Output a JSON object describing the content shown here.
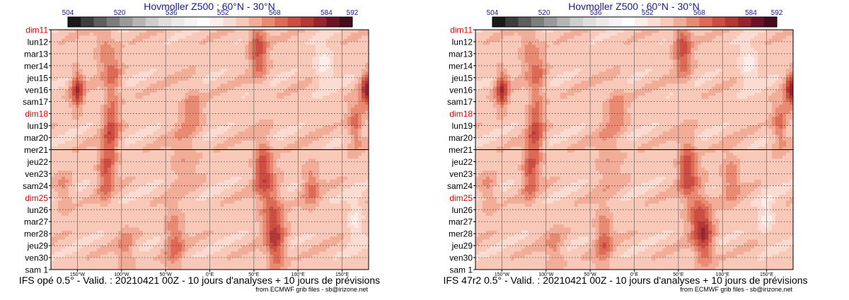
{
  "chart_data": [
    {
      "type": "heatmap",
      "title": "Hovmoller Z500 : 60°N - 30°N",
      "caption": "IFS opé 0.5° - Valid. : 20210421 00Z - 10 jours d'analyses + 10 jours de prévisions",
      "credit": "from ECMWF grib files - sb@irizone.net",
      "colorbar_ticks": [
        "504",
        "520",
        "536",
        "552",
        "568",
        "584",
        "592"
      ],
      "x_ticks": [
        "150°W",
        "100°W",
        "50°W",
        "0°E",
        "50°E",
        "100°E",
        "150°E"
      ],
      "y_labels": [
        "dim11",
        "lun12",
        "mar13",
        "mer14",
        "jeu15",
        "ven16",
        "sam17",
        "dim18",
        "lun19",
        "mar20",
        "mer21",
        "jeu22",
        "ven23",
        "sam24",
        "dim25",
        "lun26",
        "mar27",
        "mer28",
        "jeu29",
        "ven30",
        "sam 1"
      ],
      "y_highlight": [
        "dim11",
        "dim18",
        "dim25"
      ],
      "analysis_end": "mer21",
      "xlim": [
        -180,
        180
      ],
      "zlim": [
        504,
        592
      ],
      "ridges": [
        {
          "lon": -150,
          "day": 5,
          "value": 578,
          "spread_lon": 7,
          "spread_day": 1.5
        },
        {
          "lon": 178,
          "day": 5,
          "value": 580,
          "spread_lon": 7,
          "spread_day": 1.5
        },
        {
          "lon": -120,
          "day": 1.5,
          "value": 566,
          "spread_lon": 10,
          "spread_day": 2.2
        },
        {
          "lon": -110,
          "day": 4,
          "value": 568,
          "spread_lon": 9,
          "spread_day": 2.2
        },
        {
          "lon": -112,
          "day": 8.5,
          "value": 573,
          "spread_lon": 9,
          "spread_day": 2.5
        },
        {
          "lon": -118,
          "day": 12,
          "value": 572,
          "spread_lon": 9,
          "spread_day": 2.2
        },
        {
          "lon": -30,
          "day": 10.5,
          "value": 564,
          "spread_lon": 15,
          "spread_day": 3
        },
        {
          "lon": -20,
          "day": 6.5,
          "value": 566,
          "spread_lon": 11,
          "spread_day": 2
        },
        {
          "lon": 55,
          "day": 1.5,
          "value": 574,
          "spread_lon": 10,
          "spread_day": 2.5
        },
        {
          "lon": 60,
          "day": 11.5,
          "value": 574,
          "spread_lon": 10,
          "spread_day": 2.5
        },
        {
          "lon": 70,
          "day": 15,
          "value": 570,
          "spread_lon": 12,
          "spread_day": 2.5
        },
        {
          "lon": 75,
          "day": 18,
          "value": 574,
          "spread_lon": 10,
          "spread_day": 2.2
        },
        {
          "lon": 115,
          "day": 13,
          "value": 568,
          "spread_lon": 10,
          "spread_day": 2
        },
        {
          "lon": 165,
          "day": 8,
          "value": 570,
          "spread_lon": 8,
          "spread_day": 2
        },
        {
          "lon": -165,
          "day": 13.5,
          "value": 566,
          "spread_lon": 8,
          "spread_day": 1.5
        },
        {
          "lon": -40,
          "day": 17.5,
          "value": 570,
          "spread_lon": 10,
          "spread_day": 2.5
        },
        {
          "lon": -95,
          "day": 18.5,
          "value": 566,
          "spread_lon": 10,
          "spread_day": 2
        }
      ],
      "troughs": [
        {
          "lon": 130,
          "day": 3,
          "value": 548,
          "spread_lon": 10,
          "spread_day": 1.5
        },
        {
          "lon": 165,
          "day": 16,
          "value": 550,
          "spread_lon": 8,
          "spread_day": 2
        }
      ]
    },
    {
      "type": "heatmap",
      "title": "Hovmoller Z500 : 60°N - 30°N",
      "caption": "IFS 47r2 0.5° - Valid. : 20210421 00Z - 10 jours d'analyses + 10 jours de prévisions",
      "credit": "from ECMWF grib files - sb@irizone.net",
      "colorbar_ticks": [
        "504",
        "520",
        "536",
        "552",
        "568",
        "584",
        "592"
      ],
      "x_ticks": [
        "150°W",
        "100°W",
        "50°W",
        "0°E",
        "50°E",
        "100°E",
        "150°E"
      ],
      "y_labels": [
        "dim11",
        "lun12",
        "mar13",
        "mer14",
        "jeu15",
        "ven16",
        "sam17",
        "dim18",
        "lun19",
        "mar20",
        "mer21",
        "jeu22",
        "ven23",
        "sam24",
        "dim25",
        "lun26",
        "mar27",
        "mer28",
        "jeu29",
        "ven30",
        "sam 1"
      ],
      "y_highlight": [
        "dim11",
        "dim18",
        "dim25"
      ],
      "analysis_end": "mer21",
      "xlim": [
        -180,
        180
      ],
      "zlim": [
        504,
        592
      ],
      "ridges": [
        {
          "lon": -150,
          "day": 5,
          "value": 578,
          "spread_lon": 7,
          "spread_day": 1.5
        },
        {
          "lon": 178,
          "day": 5,
          "value": 580,
          "spread_lon": 7,
          "spread_day": 1.5
        },
        {
          "lon": -120,
          "day": 1.5,
          "value": 566,
          "spread_lon": 10,
          "spread_day": 2.2
        },
        {
          "lon": -110,
          "day": 4,
          "value": 568,
          "spread_lon": 9,
          "spread_day": 2.2
        },
        {
          "lon": -112,
          "day": 8.5,
          "value": 573,
          "spread_lon": 9,
          "spread_day": 2.5
        },
        {
          "lon": -118,
          "day": 12,
          "value": 572,
          "spread_lon": 9,
          "spread_day": 2.2
        },
        {
          "lon": -30,
          "day": 10.5,
          "value": 564,
          "spread_lon": 15,
          "spread_day": 3
        },
        {
          "lon": -20,
          "day": 6.5,
          "value": 566,
          "spread_lon": 11,
          "spread_day": 2
        },
        {
          "lon": 55,
          "day": 1.5,
          "value": 574,
          "spread_lon": 10,
          "spread_day": 2.5
        },
        {
          "lon": 60,
          "day": 11.5,
          "value": 575,
          "spread_lon": 10,
          "spread_day": 2.5
        },
        {
          "lon": 72,
          "day": 15.5,
          "value": 570,
          "spread_lon": 12,
          "spread_day": 2.5
        },
        {
          "lon": 80,
          "day": 17.5,
          "value": 574,
          "spread_lon": 10,
          "spread_day": 2.2
        },
        {
          "lon": 110,
          "day": 12.5,
          "value": 568,
          "spread_lon": 10,
          "spread_day": 2
        },
        {
          "lon": 165,
          "day": 8,
          "value": 570,
          "spread_lon": 8,
          "spread_day": 2
        },
        {
          "lon": -165,
          "day": 13.5,
          "value": 566,
          "spread_lon": 8,
          "spread_day": 1.5
        },
        {
          "lon": -35,
          "day": 17.5,
          "value": 570,
          "spread_lon": 10,
          "spread_day": 2.5
        },
        {
          "lon": -90,
          "day": 18.5,
          "value": 566,
          "spread_lon": 10,
          "spread_day": 2
        }
      ],
      "troughs": [
        {
          "lon": 130,
          "day": 3,
          "value": 548,
          "spread_lon": 10,
          "spread_day": 1.5
        },
        {
          "lon": 150,
          "day": 15.5,
          "value": 550,
          "spread_lon": 8,
          "spread_day": 2
        }
      ]
    }
  ]
}
